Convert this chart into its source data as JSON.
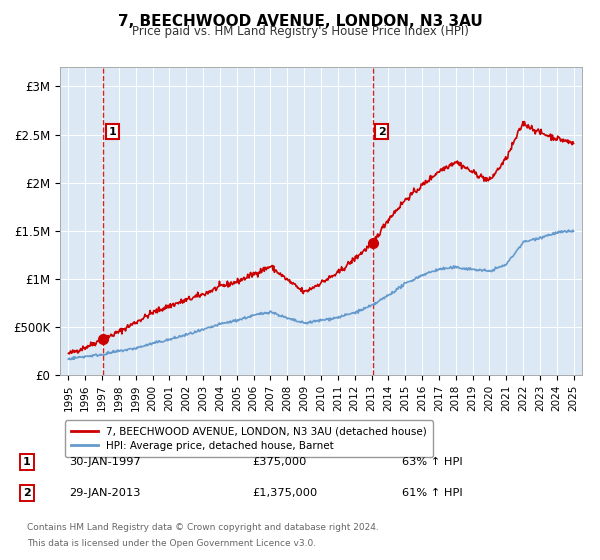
{
  "title": "7, BEECHWOOD AVENUE, LONDON, N3 3AU",
  "subtitle": "Price paid vs. HM Land Registry's House Price Index (HPI)",
  "plot_bg_color": "#dce9f5",
  "red_line_color": "#cc0000",
  "blue_line_color": "#6699cc",
  "dashed_line_color": "#cc0000",
  "ylabel_ticks": [
    "£0",
    "£500K",
    "£1M",
    "£1.5M",
    "£2M",
    "£2.5M",
    "£3M"
  ],
  "ytick_values": [
    0,
    500000,
    1000000,
    1500000,
    2000000,
    2500000,
    3000000
  ],
  "ylim": [
    0,
    3200000
  ],
  "xlim_start": 1994.5,
  "xlim_end": 2025.5,
  "xticks": [
    1995,
    1996,
    1997,
    1998,
    1999,
    2000,
    2001,
    2002,
    2003,
    2004,
    2005,
    2006,
    2007,
    2008,
    2009,
    2010,
    2011,
    2012,
    2013,
    2014,
    2015,
    2016,
    2017,
    2018,
    2019,
    2020,
    2021,
    2022,
    2023,
    2024,
    2025
  ],
  "sale1_x": 1997.08,
  "sale1_y": 375000,
  "sale1_label": "1",
  "sale2_x": 2013.08,
  "sale2_y": 1375000,
  "sale2_label": "2",
  "legend_red_label": "7, BEECHWOOD AVENUE, LONDON, N3 3AU (detached house)",
  "legend_blue_label": "HPI: Average price, detached house, Barnet",
  "note1_label": "1",
  "note1_date": "30-JAN-1997",
  "note1_price": "£375,000",
  "note1_hpi": "63% ↑ HPI",
  "note2_label": "2",
  "note2_date": "29-JAN-2013",
  "note2_price": "£1,375,000",
  "note2_hpi": "61% ↑ HPI",
  "footer_line1": "Contains HM Land Registry data © Crown copyright and database right 2024.",
  "footer_line2": "This data is licensed under the Open Government Licence v3.0."
}
